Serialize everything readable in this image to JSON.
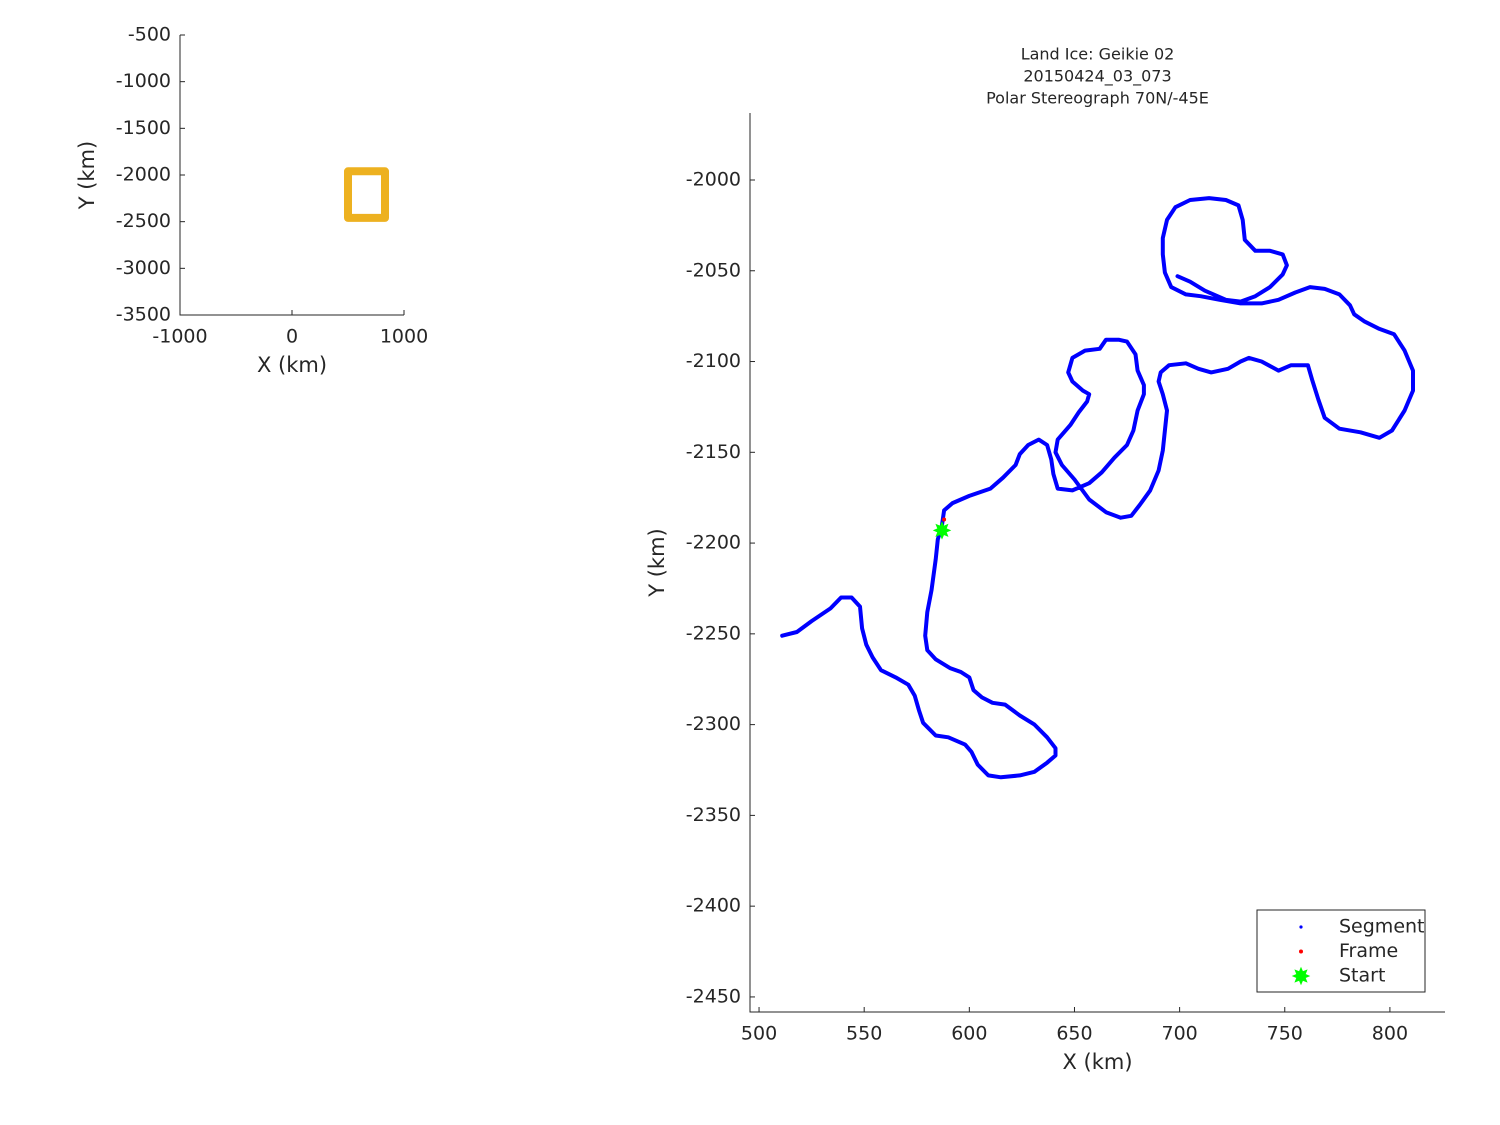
{
  "chart_data": [
    {
      "type": "line",
      "x_label": "X (km)",
      "y_label": "Y (km)",
      "xlim": [
        -1000,
        1000
      ],
      "ylim": [
        -3500,
        -500
      ],
      "xticks": [
        -1000,
        0,
        1000
      ],
      "yticks": [
        -500,
        -1000,
        -1500,
        -2000,
        -2500,
        -3000,
        -3500
      ],
      "grid": false,
      "series": [
        {
          "color": "#edb120",
          "marker": "line",
          "x": [
            500,
            830,
            830,
            500,
            500
          ],
          "y": [
            -1960,
            -1960,
            -2460,
            -2460,
            -1960
          ]
        }
      ]
    },
    {
      "type": "line",
      "title": [
        "Land Ice: Geikie 02",
        "20150424_03_073",
        "Polar Stereograph 70N/-45E"
      ],
      "x_label": "X (km)",
      "y_label": "Y (km)",
      "xlim": [
        495.7,
        826.2
      ],
      "ylim": [
        -2458.3,
        -1963.1
      ],
      "xticks": [
        500,
        550,
        600,
        650,
        700,
        750,
        800
      ],
      "yticks": [
        -2000,
        -2050,
        -2100,
        -2150,
        -2200,
        -2250,
        -2300,
        -2350,
        -2400,
        -2450
      ],
      "grid": false,
      "legend": "lower right",
      "series": [
        {
          "name": "Segment",
          "color": "#0000ff",
          "marker": "line",
          "x": [
            511,
            518,
            525,
            534,
            539,
            544,
            548,
            549,
            551,
            554,
            558,
            565,
            571,
            574,
            576,
            578,
            584,
            590,
            598,
            601,
            604,
            609,
            615,
            624,
            631,
            637,
            641,
            641,
            637,
            631,
            624,
            617,
            611,
            606,
            602,
            600,
            596,
            591,
            584,
            580,
            579,
            580,
            582,
            584,
            585,
            587,
            588,
            592,
            600,
            610,
            616,
            622,
            624,
            628,
            633,
            637,
            639,
            640,
            642,
            649,
            657,
            663,
            669,
            675,
            678,
            680,
            683,
            683,
            680,
            679,
            675,
            671,
            665,
            662,
            655,
            649,
            647,
            649,
            654,
            657,
            656,
            652,
            648,
            642,
            641,
            644,
            650,
            657,
            665,
            672,
            677,
            681,
            686,
            690,
            692,
            693,
            694,
            692,
            690,
            691,
            695,
            703,
            709,
            715,
            723,
            729,
            733,
            739,
            747,
            753,
            761,
            763,
            766,
            769,
            776,
            786,
            795,
            801,
            807,
            811,
            811,
            807,
            802,
            795,
            788,
            783,
            781,
            776,
            769,
            762,
            755,
            747,
            739,
            729,
            719,
            710,
            703,
            696,
            693,
            692,
            692,
            694,
            698,
            705,
            714,
            722,
            728,
            730,
            731,
            736,
            743,
            749,
            751,
            749,
            743,
            736,
            729,
            722,
            712,
            705,
            699
          ],
          "y": [
            -2251,
            -2249,
            -2243,
            -2236,
            -2230,
            -2230,
            -2235,
            -2247,
            -2256,
            -2263,
            -2270,
            -2274,
            -2278,
            -2284,
            -2292,
            -2299,
            -2306,
            -2307,
            -2311,
            -2315,
            -2322,
            -2328,
            -2329,
            -2328,
            -2326,
            -2321,
            -2317,
            -2313,
            -2307,
            -2300,
            -2295,
            -2289,
            -2288,
            -2285,
            -2281,
            -2274,
            -2271,
            -2269,
            -2264,
            -2259,
            -2251,
            -2238,
            -2226,
            -2209,
            -2198,
            -2190,
            -2182,
            -2178,
            -2174,
            -2170,
            -2164,
            -2157,
            -2151,
            -2146,
            -2143,
            -2146,
            -2154,
            -2162,
            -2170,
            -2171,
            -2167,
            -2161,
            -2153,
            -2146,
            -2138,
            -2127,
            -2118,
            -2113,
            -2105,
            -2096,
            -2089,
            -2088,
            -2088,
            -2093,
            -2094,
            -2098,
            -2106,
            -2111,
            -2116,
            -2118,
            -2122,
            -2128,
            -2135,
            -2143,
            -2150,
            -2157,
            -2165,
            -2176,
            -2183,
            -2186,
            -2185,
            -2179,
            -2171,
            -2160,
            -2149,
            -2138,
            -2127,
            -2118,
            -2111,
            -2106,
            -2102,
            -2101,
            -2104,
            -2106,
            -2104,
            -2100,
            -2098,
            -2100,
            -2105,
            -2102,
            -2102,
            -2110,
            -2121,
            -2131,
            -2137,
            -2139,
            -2142,
            -2138,
            -2127,
            -2116,
            -2105,
            -2094,
            -2085,
            -2082,
            -2078,
            -2074,
            -2069,
            -2063,
            -2060,
            -2059,
            -2062,
            -2066,
            -2068,
            -2068,
            -2066,
            -2064,
            -2063,
            -2059,
            -2051,
            -2041,
            -2032,
            -2022,
            -2015,
            -2011,
            -2010,
            -2011,
            -2014,
            -2022,
            -2033,
            -2039,
            -2039,
            -2041,
            -2047,
            -2052,
            -2059,
            -2064,
            -2067,
            -2066,
            -2061,
            -2056,
            -2053
          ]
        },
        {
          "name": "Frame",
          "color": "#ff0000",
          "marker": "dot",
          "x": [
            588
          ],
          "y": [
            -2187
          ]
        },
        {
          "name": "Start",
          "color": "#00ff00",
          "marker": "star",
          "x": [
            587
          ],
          "y": [
            -2193
          ]
        }
      ]
    }
  ]
}
